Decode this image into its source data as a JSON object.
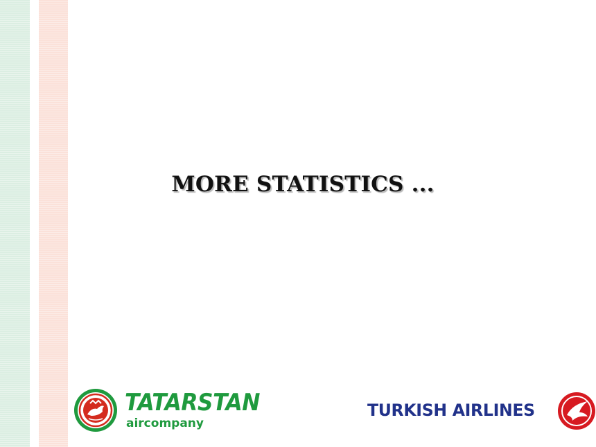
{
  "slide": {
    "title": "MORE STATISTICS ..."
  },
  "logos": {
    "tatarstan": {
      "name": "TATARSTAN",
      "subtitle": "aircompany",
      "color": "#1f9a3e",
      "emblem_accent": "#d42b1e"
    },
    "turkish": {
      "name": "TURKISH AIRLINES",
      "color": "#21328a",
      "mark_color": "#d71a21"
    }
  },
  "colors": {
    "stripe_green": "#dbeee2",
    "stripe_pink": "#fbe1d9"
  }
}
